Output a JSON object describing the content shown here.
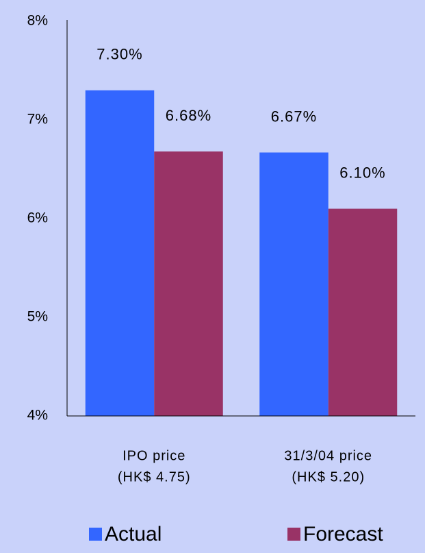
{
  "chart_data": {
    "type": "bar",
    "categories": [
      [
        "IPO price",
        "(HK$ 4.75)"
      ],
      [
        "31/3/04 price",
        "(HK$ 5.20)"
      ]
    ],
    "series": [
      {
        "name": "Actual",
        "color": "#3366ff",
        "values": [
          7.3,
          6.67
        ],
        "value_labels": [
          "7.30%",
          "6.67%"
        ]
      },
      {
        "name": "Forecast",
        "color": "#993366",
        "values": [
          6.68,
          6.1
        ],
        "value_labels": [
          "6.68%",
          "6.10%"
        ]
      }
    ],
    "ylim": [
      4,
      8
    ],
    "yticks": [
      {
        "value": 4,
        "label": "4%"
      },
      {
        "value": 5,
        "label": "5%"
      },
      {
        "value": 6,
        "label": "6%"
      },
      {
        "value": 7,
        "label": "7%"
      },
      {
        "value": 8,
        "label": "8%"
      }
    ],
    "grid": false,
    "legend": "bottom"
  }
}
